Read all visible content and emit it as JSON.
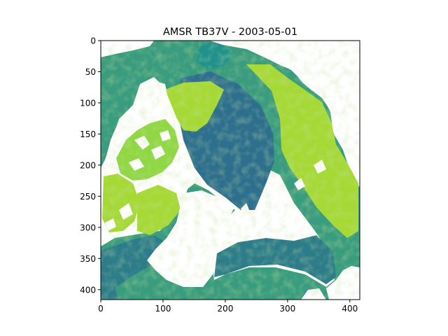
{
  "chart_data": {
    "type": "heatmap",
    "title": "AMSR TB37V - 2003-05-01",
    "xlabel": "",
    "ylabel": "",
    "xlim": [
      0,
      416
    ],
    "ylim": [
      416,
      0
    ],
    "x_ticks": [
      0,
      100,
      200,
      300,
      400
    ],
    "y_ticks": [
      0,
      50,
      100,
      150,
      200,
      250,
      300,
      350,
      400
    ],
    "x_tick_labels": [
      "0",
      "100",
      "200",
      "300",
      "400"
    ],
    "y_tick_labels": [
      "0",
      "50",
      "100",
      "150",
      "200",
      "250",
      "300",
      "350",
      "400"
    ],
    "grid": false,
    "colorbar": false,
    "colormap": [
      "#21918c",
      "#2a788e",
      "#35b779",
      "#90d743",
      "#bddf26"
    ],
    "colors": {
      "open_water": "#2d7c8a",
      "multiyear_ice": "#2e6f8e",
      "first_year_ice": "#3a9c7e",
      "land_fast_ice": "#a6d936",
      "masked": "#ffffff"
    }
  }
}
